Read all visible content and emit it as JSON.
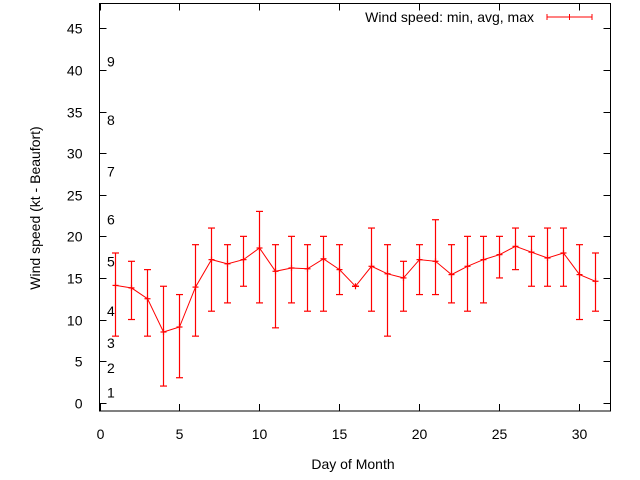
{
  "chart_data": {
    "type": "line",
    "title": "",
    "xlabel": "Day of Month",
    "ylabel": "Wind speed (kt - Beaufort)",
    "xlim": [
      0,
      32
    ],
    "ylim": [
      -1,
      48
    ],
    "xticks": [
      0,
      5,
      10,
      15,
      20,
      25,
      30
    ],
    "yticks": [
      0,
      5,
      10,
      15,
      20,
      25,
      30,
      35,
      40,
      45
    ],
    "grid": false,
    "legend": {
      "position": "top-right",
      "entries": [
        "Wind speed: min, avg, max"
      ]
    },
    "beaufort_labels": [
      {
        "label": "1",
        "kt": 1.2
      },
      {
        "label": "2",
        "kt": 4.2
      },
      {
        "label": "3",
        "kt": 7.2
      },
      {
        "label": "4",
        "kt": 11
      },
      {
        "label": "5",
        "kt": 17
      },
      {
        "label": "6",
        "kt": 22
      },
      {
        "label": "7",
        "kt": 27.8
      },
      {
        "label": "8",
        "kt": 34
      },
      {
        "label": "9",
        "kt": 41
      }
    ],
    "series": [
      {
        "name": "Wind speed: min, avg, max",
        "color": "#ff0000",
        "x": [
          1,
          2,
          3,
          4,
          5,
          6,
          7,
          8,
          9,
          10,
          11,
          12,
          13,
          14,
          15,
          16,
          17,
          18,
          19,
          20,
          21,
          22,
          23,
          24,
          25,
          26,
          27,
          28,
          29,
          30,
          31
        ],
        "avg": [
          14.1,
          13.8,
          12.5,
          8.5,
          9.1,
          13.9,
          17.2,
          16.7,
          17.2,
          18.6,
          15.8,
          16.2,
          16.1,
          17.3,
          16.0,
          14.0,
          16.4,
          15.5,
          15.0,
          17.2,
          17.0,
          15.4,
          16.4,
          17.2,
          17.8,
          18.8,
          18.1,
          17.4,
          18.0,
          15.4,
          14.6
        ],
        "min": [
          8,
          10,
          8,
          2,
          3,
          8,
          11,
          12,
          14,
          12,
          9,
          12,
          11,
          11,
          13,
          14,
          11,
          8,
          11,
          13,
          13,
          12,
          11,
          12,
          15,
          16,
          14,
          14,
          14,
          10,
          11
        ],
        "max": [
          18,
          17,
          16,
          14,
          13,
          19,
          21,
          19,
          20,
          23,
          19,
          20,
          19,
          20,
          19,
          14,
          21,
          19,
          17,
          19,
          22,
          19,
          20,
          20,
          20,
          21,
          20,
          21,
          21,
          19,
          18
        ]
      }
    ]
  }
}
